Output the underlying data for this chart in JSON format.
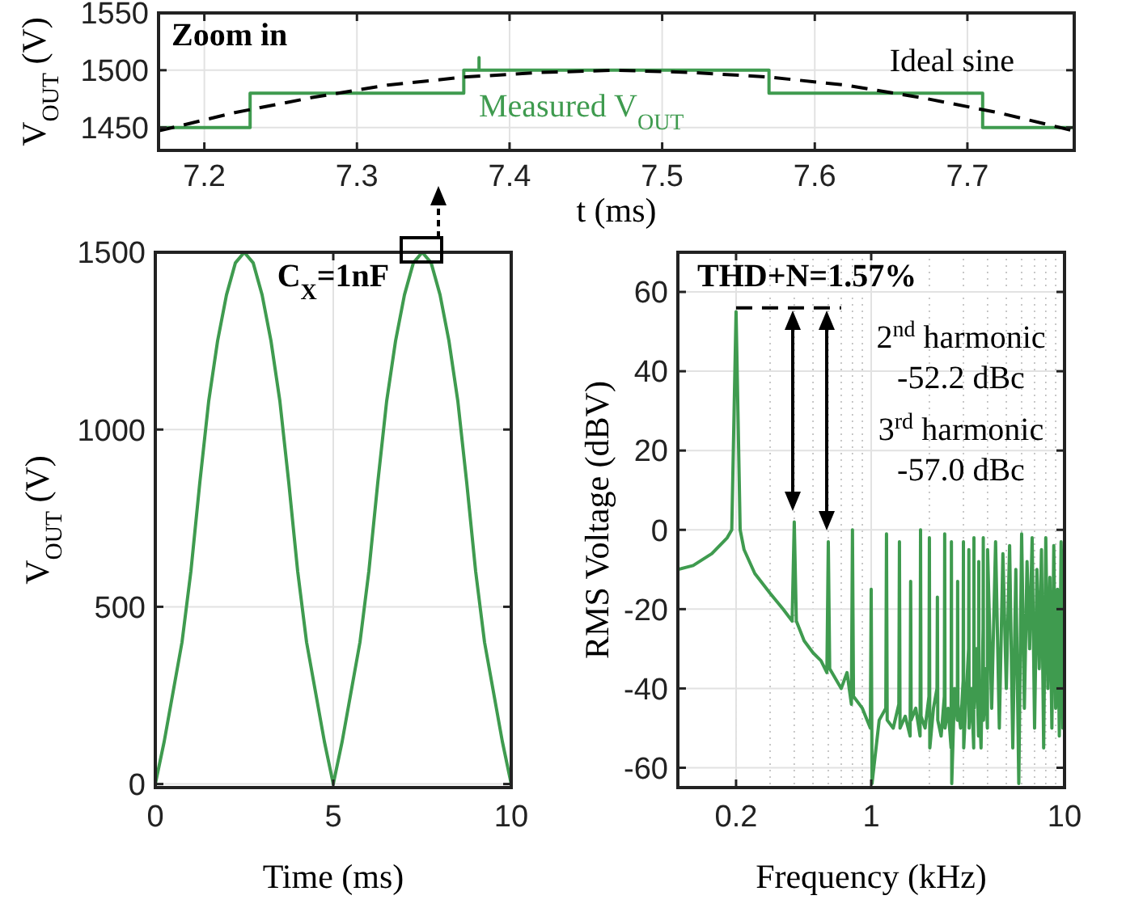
{
  "chart_data": [
    {
      "type": "line",
      "xlabel": "t (ms)",
      "ylabel": "V$_{OUT}$ (V)",
      "xlim": [
        7.17,
        7.77
      ],
      "xticks": [
        7.2,
        7.3,
        7.4,
        7.5,
        7.6,
        7.7
      ],
      "ylim": [
        1430,
        1550
      ],
      "yticks": [
        1450,
        1500,
        1550
      ],
      "grid": true,
      "annotations": [
        "Zoom in"
      ],
      "series": [
        {
          "name": "Measured V$_{OUT}$",
          "color": "#3f9b4f",
          "x": [
            7.17,
            7.23,
            7.23,
            7.37,
            7.37,
            7.38,
            7.38,
            7.38,
            7.57,
            7.57,
            7.71,
            7.71,
            7.77
          ],
          "values": [
            1450,
            1450,
            1480,
            1480,
            1500,
            1500,
            1511,
            1500,
            1500,
            1480,
            1480,
            1450,
            1450
          ]
        },
        {
          "name": "Ideal sine",
          "color": "#000000",
          "line_style": "dashed",
          "x": [
            7.17,
            7.22,
            7.27,
            7.32,
            7.37,
            7.42,
            7.47,
            7.52,
            7.57,
            7.62,
            7.67,
            7.72,
            7.77
          ],
          "values": [
            1447,
            1463,
            1476,
            1487,
            1494,
            1498,
            1500,
            1498,
            1494,
            1487,
            1476,
            1463,
            1447
          ]
        }
      ]
    },
    {
      "type": "line",
      "xlabel": "Time (ms)",
      "ylabel": "V$_{OUT}$ (V)",
      "xlim": [
        0,
        10
      ],
      "xticks": [
        0,
        5,
        10
      ],
      "ylim": [
        -10,
        1500
      ],
      "yticks": [
        0,
        500,
        1000,
        1500
      ],
      "grid": true,
      "annotations": [
        "C$_{X}$=1nF"
      ],
      "series": [
        {
          "color": "#3f9b4f",
          "x": [
            0,
            0.25,
            0.5,
            0.75,
            1.0,
            1.25,
            1.5,
            1.75,
            2.0,
            2.25,
            2.5,
            2.75,
            3.0,
            3.25,
            3.5,
            3.75,
            4.0,
            4.25,
            4.5,
            4.75,
            5.0,
            5.25,
            5.5,
            5.75,
            6.0,
            6.25,
            6.5,
            6.75,
            7.0,
            7.25,
            7.5,
            7.75,
            8.0,
            8.25,
            8.5,
            8.75,
            9.0,
            9.25,
            9.5,
            9.75,
            10.0
          ],
          "values": [
            0,
            120,
            260,
            400,
            600,
            850,
            1080,
            1250,
            1380,
            1470,
            1500,
            1470,
            1380,
            1250,
            1080,
            850,
            600,
            400,
            260,
            120,
            0,
            120,
            260,
            400,
            600,
            850,
            1080,
            1250,
            1380,
            1470,
            1500,
            1470,
            1380,
            1250,
            1080,
            850,
            600,
            400,
            260,
            120,
            0
          ]
        }
      ]
    },
    {
      "type": "line",
      "xlabel": "Frequency (kHz)",
      "ylabel": "RMS Voltage (dBV)",
      "log": "x",
      "xlim": [
        0.1,
        10
      ],
      "xticks": [
        0.2,
        1,
        10
      ],
      "ylim": [
        -65,
        70
      ],
      "yticks": [
        -60,
        -40,
        -20,
        0,
        20,
        40,
        60
      ],
      "grid": true,
      "annotations": [
        "THD+N=1.57%",
        "2$^{nd}$ harmonic",
        "-52.2 dBc",
        "3$^{rd}$ harmonic",
        "-57.0 dBc"
      ],
      "series": [
        {
          "color": "#3f9b4f",
          "x": [
            0.1,
            0.12,
            0.15,
            0.18,
            0.19,
            0.2,
            0.21,
            0.22,
            0.25,
            0.3,
            0.35,
            0.39,
            0.4,
            0.41,
            0.45,
            0.5,
            0.55,
            0.59,
            0.6,
            0.61,
            0.7,
            0.75,
            0.79,
            0.8,
            0.81,
            0.9,
            0.99,
            1.0,
            1.01,
            1.1,
            1.19,
            1.2,
            1.21,
            1.3,
            1.39,
            1.4,
            1.41,
            1.5,
            1.59,
            1.6,
            1.61,
            1.7,
            1.79,
            1.8,
            1.81,
            1.9,
            1.99,
            2.0,
            2.01,
            2.1,
            2.19,
            2.2,
            2.21,
            2.3,
            2.39,
            2.4,
            2.41,
            2.5,
            2.59,
            2.6,
            2.61,
            2.7,
            2.79,
            2.8,
            2.81,
            2.9,
            2.99,
            3.0,
            3.01,
            3.1,
            3.19,
            3.2,
            3.21,
            3.3,
            3.39,
            3.4,
            3.41,
            3.5,
            3.59,
            3.6,
            3.61,
            3.7,
            3.79,
            3.8,
            3.81,
            3.9,
            3.99,
            4.0,
            4.2,
            4.4,
            4.6,
            4.8,
            5.0,
            5.2,
            5.4,
            5.6,
            5.8,
            6.0,
            6.2,
            6.4,
            6.6,
            6.8,
            7.0,
            7.2,
            7.4,
            7.6,
            7.8,
            8.0,
            8.2,
            8.4,
            8.6,
            8.8,
            9.0,
            9.2,
            9.4,
            9.6,
            9.8,
            10.0
          ],
          "values": [
            -10,
            -9,
            -6,
            -2,
            0,
            55,
            0,
            -5,
            -11,
            -16,
            -20,
            -23,
            2,
            -23,
            -28,
            -31,
            -33,
            -36,
            -3,
            -35,
            -40,
            -36,
            -44,
            0,
            -42,
            -45,
            -50,
            -15,
            -64,
            -48,
            -45,
            -1,
            -48,
            -50,
            -44,
            -3,
            -50,
            -47,
            -52,
            -13,
            -48,
            -45,
            -52,
            0,
            -47,
            -50,
            -42,
            -2,
            -55,
            -45,
            -40,
            -17,
            -48,
            -52,
            -42,
            -1,
            -50,
            -45,
            -55,
            -3,
            -64,
            -40,
            -48,
            -13,
            -44,
            -50,
            -38,
            -3,
            -55,
            -42,
            -30,
            -5,
            -50,
            -40,
            -55,
            -2,
            -45,
            -30,
            -52,
            -8,
            -40,
            -55,
            -25,
            -2,
            -48,
            -35,
            -50,
            -5,
            -45,
            -3,
            -50,
            -6,
            -40,
            -4,
            -55,
            -10,
            -64,
            -1,
            -45,
            -8,
            -30,
            -2,
            -50,
            -10,
            -35,
            -5,
            -55,
            -2,
            -40,
            -12,
            -50,
            -4,
            -45,
            -15,
            -52,
            -3,
            -50,
            -2
          ]
        },
        {
          "color": "#000000",
          "line_style": "dashed",
          "x": [
            0.2,
            0.7
          ],
          "values": [
            56,
            56
          ]
        }
      ]
    }
  ]
}
